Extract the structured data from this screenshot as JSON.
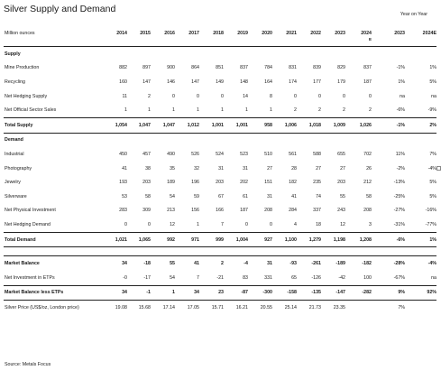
{
  "title": "Silver Supply and Demand",
  "yoy_label": "Year on Year",
  "header": {
    "label": "Million ounces",
    "years": [
      "2014",
      "2015",
      "2016",
      "2017",
      "2018",
      "2019",
      "2020",
      "2021",
      "2022",
      "2023",
      "2024"
    ],
    "last_year_sub": "E",
    "yoy_cols": [
      "2023",
      "2024E"
    ]
  },
  "supply_heading": "Supply",
  "supply_rows": [
    {
      "label": "Mine Production",
      "v": [
        "882",
        "897",
        "900",
        "864",
        "851",
        "837",
        "784",
        "831",
        "839",
        "829",
        "837"
      ],
      "y1": "-1%",
      "y2": "1%"
    },
    {
      "label": "Recycling",
      "v": [
        "160",
        "147",
        "146",
        "147",
        "149",
        "148",
        "164",
        "174",
        "177",
        "179",
        "187"
      ],
      "y1": "1%",
      "y2": "5%"
    },
    {
      "label": "Net Hedging Supply",
      "v": [
        "11",
        "2",
        "0",
        "0",
        "0",
        "14",
        "8",
        "0",
        "0",
        "0",
        "0"
      ],
      "y1": "na",
      "y2": "na"
    },
    {
      "label": "Net Official Sector Sales",
      "v": [
        "1",
        "1",
        "1",
        "1",
        "1",
        "1",
        "1",
        "2",
        "2",
        "2",
        "2"
      ],
      "y1": "-6%",
      "y2": "-9%"
    }
  ],
  "total_supply": {
    "label": "Total Supply",
    "v": [
      "1,054",
      "1,047",
      "1,047",
      "1,012",
      "1,001",
      "1,001",
      "958",
      "1,006",
      "1,018",
      "1,009",
      "1,026"
    ],
    "y1": "-1%",
    "y2": "2%"
  },
  "demand_heading": "Demand",
  "demand_rows": [
    {
      "label": "Industrial",
      "v": [
        "450",
        "457",
        "490",
        "526",
        "524",
        "523",
        "510",
        "561",
        "588",
        "655",
        "702"
      ],
      "y1": "11%",
      "y2": "7%"
    },
    {
      "label": "Photography",
      "v": [
        "41",
        "38",
        "35",
        "32",
        "31",
        "31",
        "27",
        "28",
        "27",
        "27",
        "26"
      ],
      "y1": "-2%",
      "y2": "-4%"
    },
    {
      "label": "Jewelry",
      "v": [
        "193",
        "203",
        "189",
        "196",
        "203",
        "202",
        "151",
        "182",
        "235",
        "203",
        "212"
      ],
      "y1": "-13%",
      "y2": "5%"
    },
    {
      "label": "Silverware",
      "v": [
        "53",
        "58",
        "54",
        "59",
        "67",
        "61",
        "31",
        "41",
        "74",
        "55",
        "58"
      ],
      "y1": "-25%",
      "y2": "5%"
    },
    {
      "label": "Net Physical Investment",
      "v": [
        "283",
        "309",
        "213",
        "156",
        "166",
        "187",
        "208",
        "284",
        "337",
        "243",
        "208"
      ],
      "y1": "-27%",
      "y2": "-16%"
    },
    {
      "label": "Net Hedging Demand",
      "v": [
        "0",
        "0",
        "12",
        "1",
        "7",
        "0",
        "0",
        "4",
        "18",
        "12",
        "3"
      ],
      "y1": "-31%",
      "y2": "-77%"
    }
  ],
  "total_demand": {
    "label": "Total Demand",
    "v": [
      "1,021",
      "1,065",
      "992",
      "971",
      "999",
      "1,004",
      "927",
      "1,100",
      "1,279",
      "1,198",
      "1,208"
    ],
    "y1": "-6%",
    "y2": "1%"
  },
  "market_balance": {
    "label": "Market Balance",
    "v": [
      "34",
      "-18",
      "55",
      "41",
      "2",
      "-4",
      "31",
      "-93",
      "-261",
      "-189",
      "-182"
    ],
    "y1": "-28%",
    "y2": "-4%"
  },
  "net_etp": {
    "label": "Net Investment in ETPs",
    "v": [
      "-0",
      "-17",
      "54",
      "7",
      "-21",
      "83",
      "331",
      "65",
      "-126",
      "-42",
      "100"
    ],
    "y1": "-67%",
    "y2": "na"
  },
  "balance_less_etp": {
    "label": "Market Balance less ETPs",
    "v": [
      "34",
      "-1",
      "1",
      "34",
      "23",
      "-87",
      "-300",
      "-158",
      "-135",
      "-147",
      "-282"
    ],
    "y1": "9%",
    "y2": "92%"
  },
  "price": {
    "label": "Silver Price (US$/oz, London price)",
    "v": [
      "19.08",
      "15.68",
      "17.14",
      "17.05",
      "15.71",
      "16.21",
      "20.55",
      "25.14",
      "21.73",
      "23.35",
      ""
    ],
    "y1": "7%",
    "y2": ""
  },
  "source": "Source: Metals Focus"
}
